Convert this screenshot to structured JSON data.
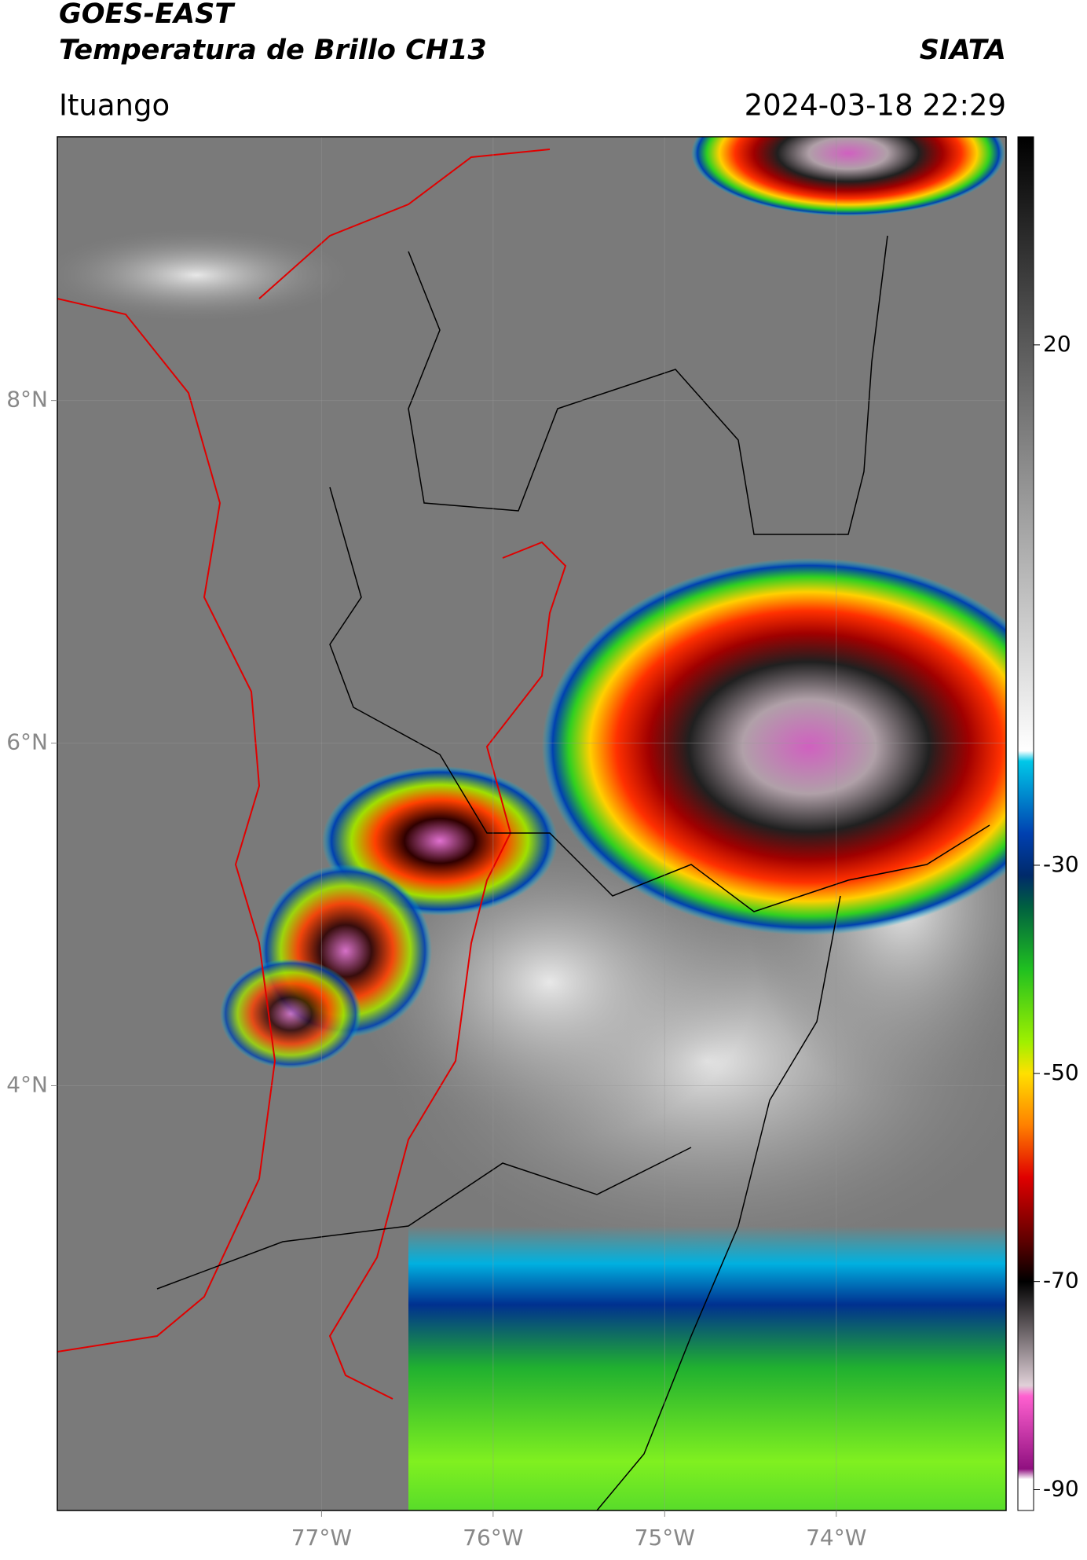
{
  "header": {
    "title": "GOES-EAST",
    "subtitle": "Temperatura de Brillo CH13",
    "source": "SIATA",
    "region": "Ituango",
    "datetime": "2024-03-18 22:29"
  },
  "map": {
    "lonlim": [
      -78.54,
      -73.01
    ],
    "latlim": [
      1.52,
      9.54
    ],
    "lon_ticks": [
      {
        "value": -77,
        "label": "77°W"
      },
      {
        "value": -76,
        "label": "76°W"
      },
      {
        "value": -75,
        "label": "75°W"
      },
      {
        "value": -74,
        "label": "74°W"
      }
    ],
    "lat_ticks": [
      {
        "value": 8,
        "label": "8°N"
      },
      {
        "value": 6,
        "label": "6°N"
      },
      {
        "value": 4,
        "label": "4°N"
      }
    ],
    "grid": true
  },
  "colorbar": {
    "clim": [
      -92,
      40
    ],
    "ticks": [
      20,
      -30,
      -50,
      -70,
      -90
    ],
    "stops": [
      [
        40,
        "#000000"
      ],
      [
        20,
        "#5a5a5a"
      ],
      [
        -19,
        "#ffffff"
      ],
      [
        -20,
        "#00c8e8"
      ],
      [
        -27,
        "#0040b0"
      ],
      [
        -31,
        "#002a6a"
      ],
      [
        -34,
        "#006040"
      ],
      [
        -40,
        "#20c020"
      ],
      [
        -47,
        "#a0f000"
      ],
      [
        -50,
        "#ffe000"
      ],
      [
        -55,
        "#ff8000"
      ],
      [
        -60,
        "#e00000"
      ],
      [
        -66,
        "#600000"
      ],
      [
        -70,
        "#000000"
      ],
      [
        -80,
        "#e0d0d8"
      ],
      [
        -81,
        "#ff60d0"
      ],
      [
        -88,
        "#901080"
      ],
      [
        -89,
        "#ffffff"
      ],
      [
        -92,
        "#ffffff"
      ]
    ]
  }
}
